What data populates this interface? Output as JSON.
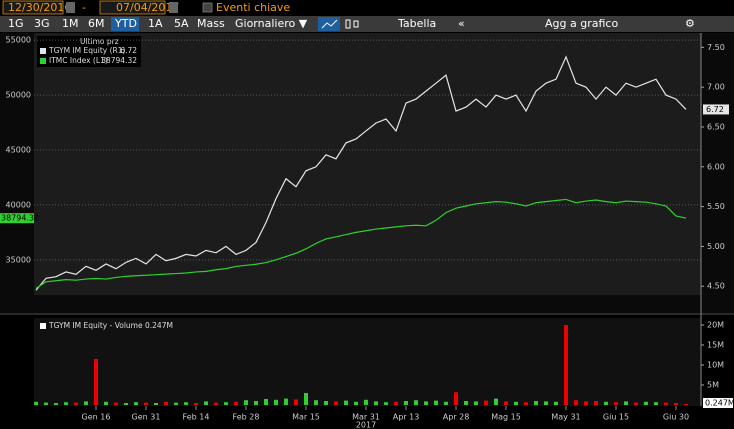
{
  "toolbar": {
    "start_date": "12/30/2016",
    "separator": "-",
    "end_date": "07/04/2017",
    "key_events": "Eventi chiave",
    "ranges": [
      "1G",
      "3G",
      "1M",
      "6M",
      "YTD",
      "1A",
      "5A",
      "Mass"
    ],
    "selected_range": "YTD",
    "frequency": "Giornaliero ▼",
    "table": "Tabella",
    "collapse": "«",
    "add_to_chart": "Agg a grafico",
    "settings": "⚙"
  },
  "chart_data": [
    {
      "type": "line",
      "legend_title": "Ultimo prz",
      "ylim": [
        31800,
        55650
      ],
      "yticks": [
        35000,
        40000,
        45000,
        50000,
        55000
      ],
      "y2lim": [
        4.39,
        7.68
      ],
      "y2ticks": [
        {
          "value": 4.5,
          "label": "4.50"
        },
        {
          "value": 5,
          "label": "5.00"
        },
        {
          "value": 5.5,
          "label": "5.50"
        },
        {
          "value": 6,
          "label": "6.00"
        },
        {
          "value": 6.5,
          "label": "6.50"
        },
        {
          "value": 7,
          "label": "7.00"
        },
        {
          "value": 7.5,
          "label": "7.50"
        }
      ],
      "grid": true,
      "series": [
        {
          "name": "TGYM IM Equity  (R1)",
          "color": "#e6e6e6",
          "axis": "y2",
          "values": [
            4.45,
            4.6,
            4.62,
            4.68,
            4.65,
            4.75,
            4.7,
            4.78,
            4.72,
            4.8,
            4.85,
            4.78,
            4.9,
            4.82,
            4.85,
            4.9,
            4.88,
            4.95,
            4.92,
            5.0,
            4.9,
            4.95,
            5.05,
            5.3,
            5.6,
            5.85,
            5.75,
            5.95,
            6.0,
            6.15,
            6.1,
            6.3,
            6.35,
            6.45,
            6.55,
            6.6,
            6.45,
            6.8,
            6.85,
            6.95,
            7.05,
            7.15,
            6.7,
            6.75,
            6.85,
            6.75,
            6.9,
            6.85,
            6.9,
            6.7,
            6.95,
            7.05,
            7.1,
            7.38,
            7.05,
            7.0,
            6.85,
            7.0,
            6.9,
            7.05,
            7.0,
            7.05,
            7.1,
            6.9,
            6.85,
            6.72
          ]
        },
        {
          "name": "ITMC Index  (L1)",
          "color": "#2fd12f",
          "values": [
            32400,
            33000,
            33100,
            33200,
            33150,
            33250,
            33300,
            33250,
            33400,
            33500,
            33550,
            33600,
            33650,
            33700,
            33750,
            33800,
            33900,
            33950,
            34100,
            34200,
            34400,
            34500,
            34600,
            34750,
            35000,
            35300,
            35600,
            36000,
            36500,
            36900,
            37100,
            37300,
            37500,
            37650,
            37800,
            37900,
            38000,
            38100,
            38150,
            38100,
            38600,
            39300,
            39700,
            39900,
            40100,
            40200,
            40300,
            40250,
            40100,
            39900,
            40200,
            40300,
            40400,
            40500,
            40200,
            40350,
            40450,
            40300,
            40200,
            40350,
            40300,
            40250,
            40100,
            39900,
            39000,
            38794.32
          ]
        }
      ]
    },
    {
      "type": "bar",
      "title": "TGYM IM Equity - Volume 0.247M",
      "categories": [
        null,
        null,
        null,
        null,
        null,
        null,
        "Gen 16",
        null,
        null,
        null,
        null,
        "Gen 31",
        null,
        null,
        null,
        null,
        "Feb 14",
        null,
        null,
        null,
        null,
        "Feb 28",
        null,
        null,
        null,
        null,
        null,
        "Mar 15",
        null,
        null,
        null,
        null,
        null,
        "Mar 31",
        null,
        null,
        null,
        "Apr 13",
        null,
        null,
        null,
        null,
        "Apr 28",
        null,
        null,
        null,
        null,
        "Mag 15",
        null,
        null,
        null,
        null,
        null,
        "May 31",
        null,
        null,
        null,
        null,
        "Giu 15",
        null,
        null,
        null,
        null,
        null,
        "Giu 30",
        null
      ],
      "year_label": "2017",
      "ylim": [
        0,
        20.5
      ],
      "yticks": [
        {
          "value": 5,
          "label": "5M"
        },
        {
          "value": 10,
          "label": "10M"
        },
        {
          "value": 15,
          "label": "15M"
        },
        {
          "value": 20,
          "label": "20M"
        }
      ],
      "values": [
        0.8,
        0.6,
        0.5,
        0.7,
        0.6,
        0.9,
        11.5,
        0.8,
        0.6,
        0.5,
        0.7,
        0.6,
        0.5,
        0.8,
        0.6,
        0.7,
        0.5,
        0.9,
        0.6,
        0.7,
        0.8,
        1.2,
        1.0,
        1.5,
        1.3,
        1.6,
        1.4,
        3.0,
        1.2,
        1.0,
        0.9,
        1.1,
        0.8,
        1.3,
        0.9,
        0.7,
        0.8,
        1.0,
        1.2,
        0.9,
        1.1,
        0.8,
        3.2,
        1.0,
        0.9,
        1.1,
        1.6,
        0.9,
        0.8,
        0.7,
        1.0,
        0.9,
        0.8,
        20,
        1.2,
        0.9,
        1.0,
        0.8,
        0.7,
        0.9,
        0.6,
        0.8,
        0.7,
        0.6,
        0.5,
        0.247
      ],
      "value_labels": [
        null,
        null,
        null,
        null,
        null,
        null,
        null,
        null,
        null,
        null,
        null,
        null,
        null,
        null,
        null,
        null,
        null,
        null,
        null,
        null,
        null,
        null,
        null,
        null,
        null,
        null,
        null,
        null,
        null,
        null,
        null,
        null,
        null,
        null,
        null,
        null,
        null,
        null,
        null,
        null,
        null,
        null,
        null,
        null,
        null,
        null,
        null,
        null,
        null,
        null,
        null,
        null,
        null,
        null,
        null,
        null,
        null,
        null,
        null,
        null,
        null,
        null,
        null,
        null,
        null,
        "0.247M"
      ],
      "colors": [
        "#3c3",
        "#3c3",
        "#3c3",
        "#3c3",
        "#e00",
        "#3c3",
        "#e00",
        "#3c3",
        "#e00",
        "#3c3",
        "#3c3",
        "#e00",
        "#3c3",
        "#e00",
        "#3c3",
        "#3c3",
        "#e00",
        "#3c3",
        "#e00",
        "#3c3",
        "#e00",
        "#3c3",
        "#3c3",
        "#3c3",
        "#3c3",
        "#3c3",
        "#e00",
        "#3c3",
        "#3c3",
        "#3c3",
        "#e00",
        "#3c3",
        "#3c3",
        "#3c3",
        "#3c3",
        "#3c3",
        "#e00",
        "#3c3",
        "#3c3",
        "#3c3",
        "#3c3",
        "#3c3",
        "#e00",
        "#3c3",
        "#3c3",
        "#e00",
        "#3c3",
        "#e00",
        "#3c3",
        "#e00",
        "#3c3",
        "#3c3",
        "#3c3",
        "#e00",
        "#e00",
        "#e00",
        "#e00",
        "#3c3",
        "#e00",
        "#3c3",
        "#e00",
        "#3c3",
        "#3c3",
        "#e00",
        "#e00",
        "#e00"
      ]
    }
  ]
}
